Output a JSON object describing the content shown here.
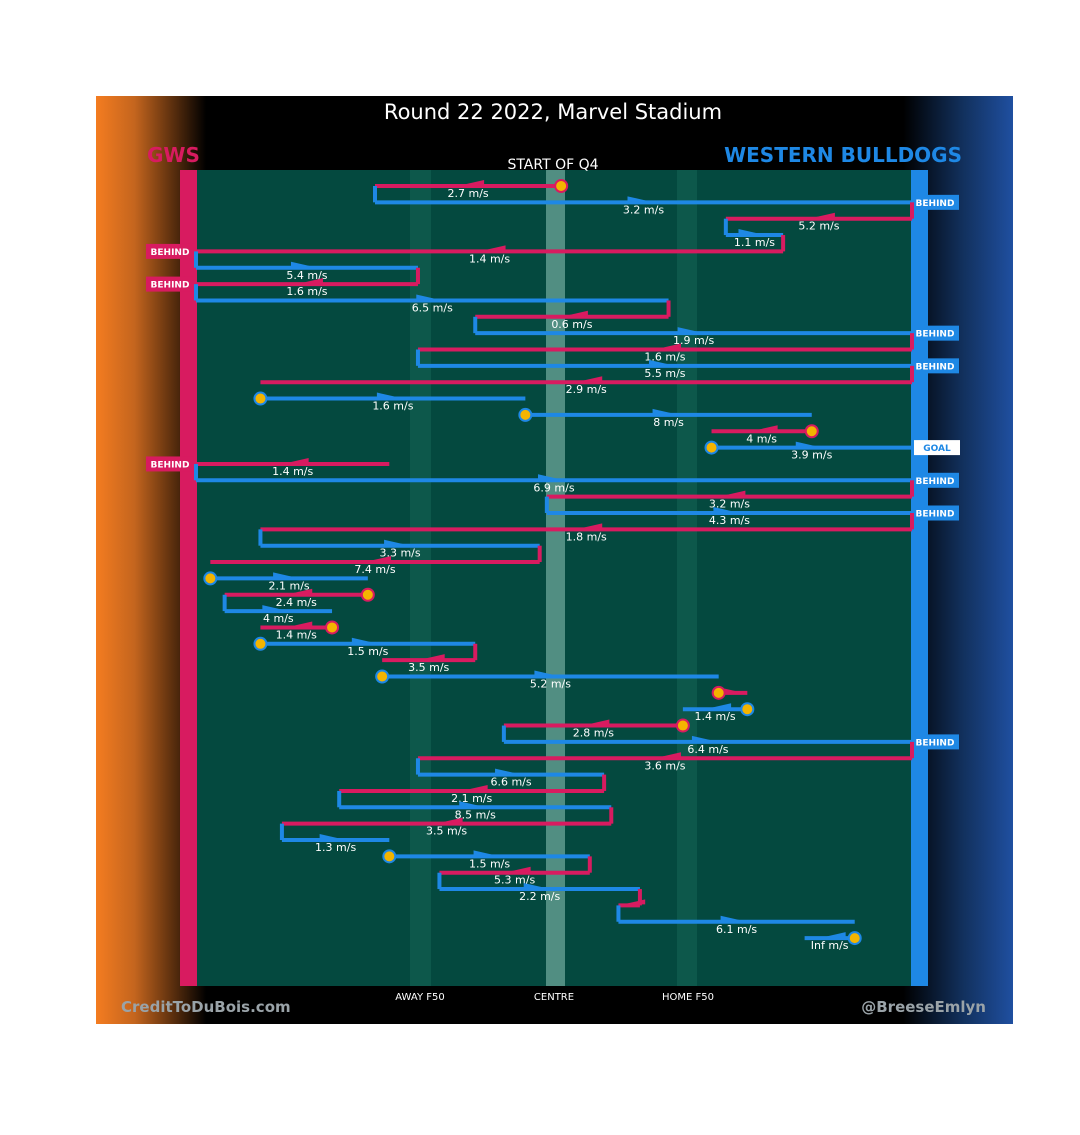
{
  "chart_data": {
    "type": "line",
    "title": "Round 22 2022, Marvel Stadium",
    "subtitle": "START OF Q4",
    "teams": {
      "left": {
        "name": "GWS",
        "color": "#d81b60"
      },
      "right": {
        "name": "WESTERN BULLDOGS",
        "color": "#1e88e5"
      }
    },
    "x_axis_labels": {
      "away_f50": "AWAY F50",
      "centre": "CENTRE",
      "home_f50": "HOME F50"
    },
    "footer": {
      "left": "CreditToDuBois.com",
      "right": "@BreeseEmlyn"
    },
    "x_scale_note": "0 = GWS goal line, 100 = Western Bulldogs goal line",
    "chains": [
      {
        "team": "gws",
        "from": 51,
        "to": 25,
        "speed": "2.7 m/s",
        "start": "stoppage"
      },
      {
        "team": "wb",
        "from": 25,
        "to": 100,
        "speed": "3.2 m/s",
        "end": "BEHIND"
      },
      {
        "team": "gws",
        "from": 100,
        "to": 74,
        "speed": "5.2 m/s"
      },
      {
        "team": "wb",
        "from": 74,
        "to": 82,
        "speed": "1.1 m/s"
      },
      {
        "team": "gws",
        "from": 82,
        "to": 0,
        "speed": "1.4 m/s",
        "end": "BEHIND"
      },
      {
        "team": "wb",
        "from": 0,
        "to": 31,
        "speed": "5.4 m/s"
      },
      {
        "team": "gws",
        "from": 31,
        "to": 0,
        "speed": "1.6 m/s",
        "end": "BEHIND"
      },
      {
        "team": "wb",
        "from": 0,
        "to": 66,
        "speed": "6.5 m/s"
      },
      {
        "team": "gws",
        "from": 66,
        "to": 39,
        "speed": "0.6 m/s"
      },
      {
        "team": "wb",
        "from": 39,
        "to": 100,
        "speed": "1.9 m/s",
        "end": "BEHIND"
      },
      {
        "team": "gws",
        "from": 100,
        "to": 31,
        "speed": "1.6 m/s"
      },
      {
        "team": "wb",
        "from": 31,
        "to": 100,
        "speed": "5.5 m/s",
        "end": "BEHIND"
      },
      {
        "team": "gws",
        "from": 100,
        "to": 9,
        "speed": "2.9 m/s"
      },
      {
        "team": "wb",
        "from": 9,
        "to": 46,
        "speed": "1.6 m/s",
        "start": "stoppage"
      },
      {
        "team": "wb",
        "from": 46,
        "to": 86,
        "speed": "8 m/s",
        "start": "stoppage"
      },
      {
        "team": "gws",
        "from": 86,
        "to": 72,
        "speed": "4 m/s",
        "start": "stoppage"
      },
      {
        "team": "wb",
        "from": 72,
        "to": 100,
        "speed": "3.9 m/s",
        "start": "stoppage",
        "end": "GOAL"
      },
      {
        "team": "gws",
        "from": 27,
        "to": 0,
        "speed": "1.4 m/s",
        "end": "BEHIND"
      },
      {
        "team": "wb",
        "from": 0,
        "to": 100,
        "speed": "6.9 m/s",
        "end": "BEHIND"
      },
      {
        "team": "gws",
        "from": 100,
        "to": 49,
        "speed": "3.2 m/s"
      },
      {
        "team": "wb",
        "from": 49,
        "to": 100,
        "speed": "4.3 m/s",
        "end": "BEHIND"
      },
      {
        "team": "gws",
        "from": 100,
        "to": 9,
        "speed": "1.8 m/s"
      },
      {
        "team": "wb",
        "from": 9,
        "to": 48,
        "speed": "3.3 m/s"
      },
      {
        "team": "gws",
        "from": 48,
        "to": 2,
        "speed": "7.4 m/s"
      },
      {
        "team": "wb",
        "from": 2,
        "to": 24,
        "speed": "2.1 m/s",
        "start": "stoppage"
      },
      {
        "team": "gws",
        "from": 24,
        "to": 4,
        "speed": "2.4 m/s",
        "start": "stoppage"
      },
      {
        "team": "wb",
        "from": 4,
        "to": 19,
        "speed": "4 m/s"
      },
      {
        "team": "gws",
        "from": 19,
        "to": 9,
        "speed": "1.4 m/s",
        "start": "stoppage"
      },
      {
        "team": "wb",
        "from": 9,
        "to": 39,
        "speed": "1.5 m/s",
        "start": "stoppage"
      },
      {
        "team": "gws",
        "from": 39,
        "to": 26,
        "speed": "3.5 m/s"
      },
      {
        "team": "wb",
        "from": 26,
        "to": 73,
        "speed": "5.2 m/s",
        "start": "stoppage"
      },
      {
        "team": "gws",
        "from": 73,
        "to": 77,
        "speed": "",
        "start": "stoppage"
      },
      {
        "team": "wb",
        "from": 77,
        "to": 68,
        "speed": "1.4 m/s",
        "start": "stoppage"
      },
      {
        "team": "gws",
        "from": 68,
        "to": 43,
        "speed": "2.8 m/s",
        "start": "stoppage"
      },
      {
        "team": "wb",
        "from": 43,
        "to": 100,
        "speed": "6.4 m/s",
        "end": "BEHIND"
      },
      {
        "team": "gws",
        "from": 100,
        "to": 31,
        "speed": "3.6 m/s"
      },
      {
        "team": "wb",
        "from": 31,
        "to": 57,
        "speed": "6.6 m/s"
      },
      {
        "team": "gws",
        "from": 57,
        "to": 20,
        "speed": "2.1 m/s"
      },
      {
        "team": "wb",
        "from": 20,
        "to": 58,
        "speed": "8.5 m/s"
      },
      {
        "team": "gws",
        "from": 58,
        "to": 12,
        "speed": "3.5 m/s"
      },
      {
        "team": "wb",
        "from": 12,
        "to": 27,
        "speed": "1.3 m/s"
      },
      {
        "team": "wb",
        "from": 27,
        "to": 55,
        "speed": "1.5 m/s",
        "start": "stoppage"
      },
      {
        "team": "gws",
        "from": 55,
        "to": 34,
        "speed": "5.3 m/s"
      },
      {
        "team": "wb",
        "from": 34,
        "to": 62,
        "speed": "2.2 m/s"
      },
      {
        "team": "gws",
        "from": 62,
        "to": 59,
        "speed": ""
      },
      {
        "team": "wb",
        "from": 59,
        "to": 92,
        "speed": "6.1 m/s"
      },
      {
        "team": "wb",
        "from": 92,
        "to": 85,
        "speed": "Inf m/s",
        "start": "stoppage"
      }
    ]
  }
}
